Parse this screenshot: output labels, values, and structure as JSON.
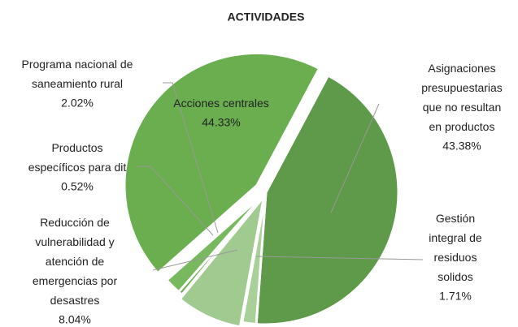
{
  "chart_data": {
    "type": "pie",
    "title": "ACTIVIDADES",
    "categories": [
      "Asignaciones presupuestarias que no resultan en productos",
      "Gestión integral de residuos solidos",
      "Reducción de vulnerabilidad y atención de emergencias por desastres",
      "Productos específicos para dit",
      "Programa nacional de saneamiento rural",
      "Acciones centrales"
    ],
    "values": [
      43.38,
      1.71,
      8.04,
      0.52,
      2.02,
      44.33
    ],
    "value_labels": [
      "43.38%",
      "1.71%",
      "8.04%",
      "0.52%",
      "2.02%",
      "44.33%"
    ],
    "colors": [
      "#5e9a49",
      "#a9d099",
      "#a0ca8f",
      "#6aae50",
      "#78b85e",
      "#6aae50"
    ]
  }
}
